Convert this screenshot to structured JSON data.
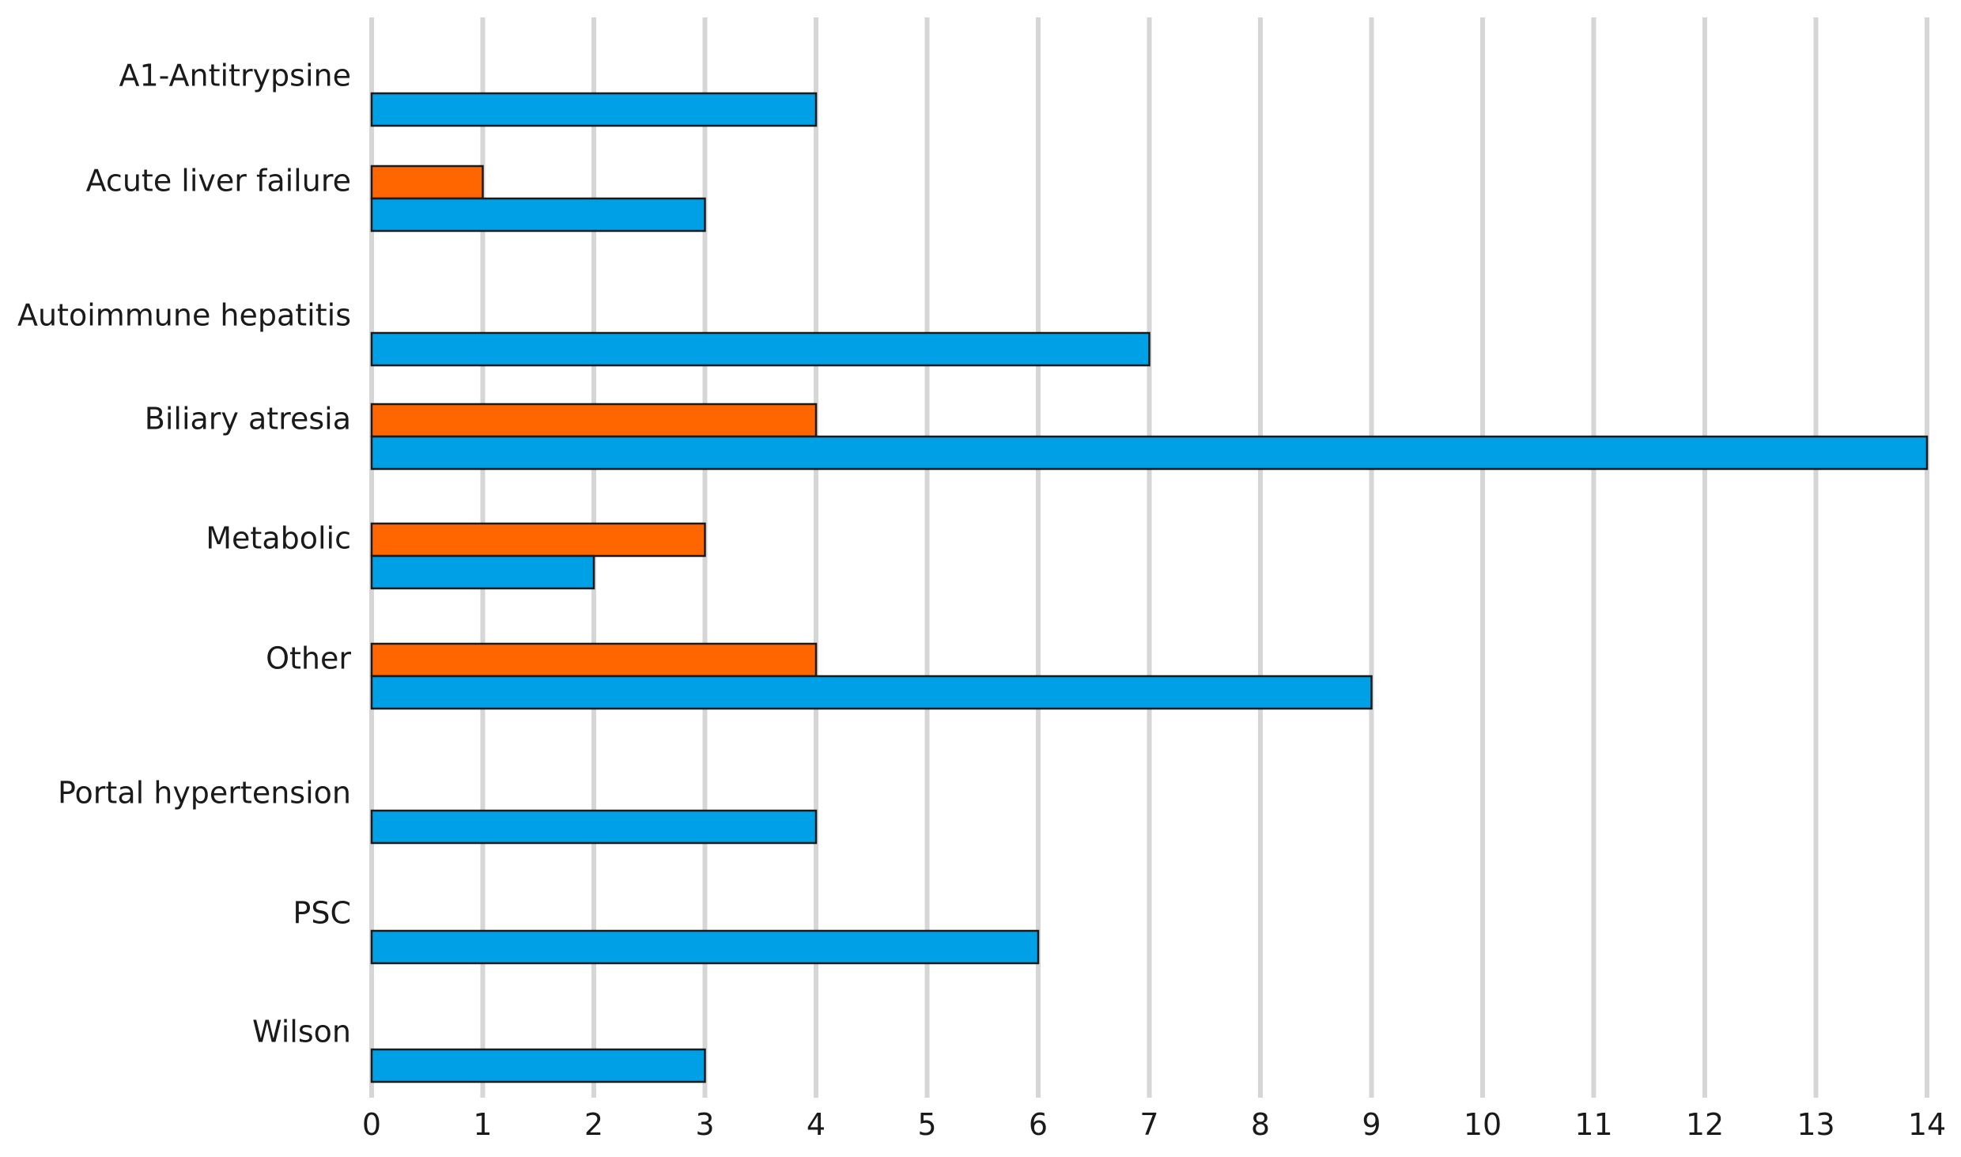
{
  "chart_data": {
    "type": "bar",
    "orientation": "horizontal",
    "categories": [
      "A1-Antitrypsine",
      "Acute liver failure",
      "Autoimmune hepatitis",
      "Biliary atresia",
      "Metabolic",
      "Other",
      "Portal hypertension",
      "PSC",
      "Wilson"
    ],
    "series": [
      {
        "color": "#FF6600",
        "values": [
          0,
          1,
          0,
          4,
          3,
          4,
          0,
          0,
          0
        ]
      },
      {
        "color": "#00A0E6",
        "values": [
          4,
          3,
          7,
          14,
          2,
          9,
          4,
          6,
          3
        ]
      }
    ],
    "xlim": [
      0,
      14
    ],
    "xticks": [
      "0",
      "1",
      "2",
      "3",
      "4",
      "5",
      "6",
      "7",
      "8",
      "9",
      "10",
      "11",
      "12",
      "13",
      "14"
    ],
    "grid": true,
    "title": "",
    "xlabel": "",
    "ylabel": ""
  }
}
